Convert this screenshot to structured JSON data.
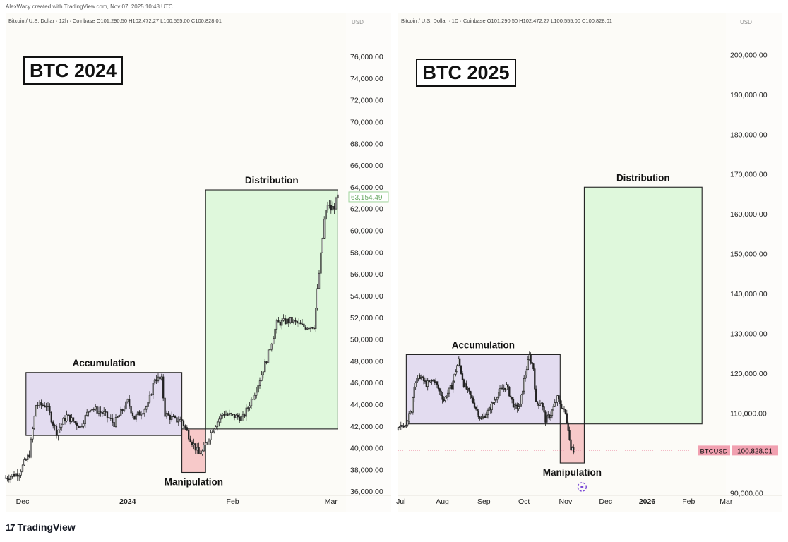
{
  "credit": "AlexWacy created with TradingView.com, Nov 07, 2025 10:48 UTC",
  "footer_brand": "TradingView",
  "footer_logo": "17",
  "colors": {
    "accumulation": "#e3dcf0",
    "manipulation": "#f7c9c9",
    "distribution": "#dff8dc",
    "candle": "#222222",
    "price_label": "#f1a0b0"
  },
  "chart_data": [
    {
      "type": "candlestick",
      "header": "Bitcoin / U.S. Dollar · 12h · Coinbase  O101,290.50  H102,472.27  L100,555.00  C100,828.01",
      "title": "BTC 2024",
      "currency": "USD",
      "y_ticks": [
        76000,
        74000,
        72000,
        70000,
        68000,
        66000,
        64000,
        62000,
        60000,
        58000,
        56000,
        54000,
        52000,
        50000,
        48000,
        46000,
        44000,
        42000,
        40000,
        38000,
        36000
      ],
      "y_tick_labels": [
        "76,000.00",
        "74,000.00",
        "72,000.00",
        "70,000.00",
        "68,000.00",
        "66,000.00",
        "64,000.00",
        "62,000.00",
        "60,000.00",
        "58,000.00",
        "56,000.00",
        "54,000.00",
        "52,000.00",
        "50,000.00",
        "48,000.00",
        "46,000.00",
        "44,000.00",
        "42,000.00",
        "40,000.00",
        "38,000.00",
        "36,000.00"
      ],
      "ylim": [
        35300,
        77500
      ],
      "x_range": [
        "2023-11-26",
        "2024-03-05"
      ],
      "x_ticks": [
        {
          "date": "2023-12-01",
          "label": "Dec"
        },
        {
          "date": "2024-01-01",
          "label": "2024"
        },
        {
          "date": "2024-02-01",
          "label": "Feb"
        },
        {
          "date": "2024-03-01",
          "label": "Mar"
        }
      ],
      "price_label": "63,154.49",
      "price_label_value": 63154.49,
      "zones": [
        {
          "label": "Accumulation",
          "start": "2023-12-02",
          "end": "2024-01-17",
          "low": 41200,
          "high": 47000
        },
        {
          "label": "Manipulation",
          "start": "2024-01-17",
          "end": "2024-01-24",
          "low": 37800,
          "high": 41800
        },
        {
          "label": "Distribution",
          "start": "2024-01-24",
          "end": "2024-03-03",
          "low": 41800,
          "high": 63800
        }
      ],
      "price_path": [
        {
          "date": "2023-11-26",
          "close": 37300
        },
        {
          "date": "2023-11-30",
          "close": 37800
        },
        {
          "date": "2023-12-03",
          "close": 39500
        },
        {
          "date": "2023-12-05",
          "close": 44000
        },
        {
          "date": "2023-12-08",
          "close": 44000
        },
        {
          "date": "2023-12-11",
          "close": 41500
        },
        {
          "date": "2023-12-14",
          "close": 43000
        },
        {
          "date": "2023-12-18",
          "close": 42000
        },
        {
          "date": "2023-12-21",
          "close": 43800
        },
        {
          "date": "2023-12-25",
          "close": 43200
        },
        {
          "date": "2023-12-28",
          "close": 42300
        },
        {
          "date": "2024-01-01",
          "close": 44300
        },
        {
          "date": "2024-01-03",
          "close": 42800
        },
        {
          "date": "2024-01-07",
          "close": 44000
        },
        {
          "date": "2024-01-09",
          "close": 46500
        },
        {
          "date": "2024-01-11",
          "close": 46300
        },
        {
          "date": "2024-01-12",
          "close": 43200
        },
        {
          "date": "2024-01-15",
          "close": 42600
        },
        {
          "date": "2024-01-17",
          "close": 42600
        },
        {
          "date": "2024-01-19",
          "close": 41200
        },
        {
          "date": "2024-01-22",
          "close": 39500
        },
        {
          "date": "2024-01-23",
          "close": 39700
        },
        {
          "date": "2024-01-26",
          "close": 41800
        },
        {
          "date": "2024-01-29",
          "close": 43200
        },
        {
          "date": "2024-02-01",
          "close": 43000
        },
        {
          "date": "2024-02-04",
          "close": 42800
        },
        {
          "date": "2024-02-08",
          "close": 45500
        },
        {
          "date": "2024-02-11",
          "close": 48200
        },
        {
          "date": "2024-02-14",
          "close": 51500
        },
        {
          "date": "2024-02-18",
          "close": 51800
        },
        {
          "date": "2024-02-22",
          "close": 51200
        },
        {
          "date": "2024-02-25",
          "close": 51300
        },
        {
          "date": "2024-02-26",
          "close": 54500
        },
        {
          "date": "2024-02-28",
          "close": 61000
        },
        {
          "date": "2024-02-29",
          "close": 62500
        },
        {
          "date": "2024-03-01",
          "close": 62000
        },
        {
          "date": "2024-03-02",
          "close": 62300
        },
        {
          "date": "2024-03-03",
          "close": 63150
        }
      ]
    },
    {
      "type": "candlestick",
      "header": "Bitcoin / U.S. Dollar · 1D · Coinbase  O101,290.50  H102,472.27  L100,555.00  C100,828.01",
      "title": "BTC 2025",
      "currency": "USD",
      "y_ticks": [
        200000,
        190000,
        180000,
        170000,
        160000,
        150000,
        140000,
        130000,
        120000,
        110000,
        90000
      ],
      "y_tick_labels": [
        "200,000.00",
        "190,000.00",
        "180,000.00",
        "170,000.00",
        "160,000.00",
        "150,000.00",
        "140,000.00",
        "130,000.00",
        "120,000.00",
        "110,000.00",
        "90,000.00"
      ],
      "ylim": [
        88500,
        203600
      ],
      "x_range": [
        "2025-06-29",
        "2026-03-04"
      ],
      "x_ticks": [
        {
          "date": "2025-07-01",
          "label": "Jul"
        },
        {
          "date": "2025-08-01",
          "label": "Aug"
        },
        {
          "date": "2025-09-01",
          "label": "Sep"
        },
        {
          "date": "2025-10-01",
          "label": "Oct"
        },
        {
          "date": "2025-11-01",
          "label": "Nov"
        },
        {
          "date": "2025-12-01",
          "label": "Dec"
        },
        {
          "date": "2026-01-01",
          "label": "2026"
        },
        {
          "date": "2026-02-01",
          "label": "Feb"
        },
        {
          "date": "2026-03-01",
          "label": "Mar"
        }
      ],
      "price_tag": {
        "symbol": "BTCUSD",
        "value": "100,828.01"
      },
      "last_price": 100828.01,
      "zones": [
        {
          "label": "Accumulation",
          "start": "2025-07-05",
          "end": "2025-10-28",
          "low": 107500,
          "high": 124900
        },
        {
          "label": "Manipulation",
          "start": "2025-10-28",
          "end": "2025-11-15",
          "low": 97700,
          "high": 107500
        },
        {
          "label": "Distribution",
          "start": "2025-11-15",
          "end": "2026-02-11",
          "low": 107500,
          "high": 166900
        }
      ],
      "price_path": [
        {
          "date": "2025-06-29",
          "close": 106000
        },
        {
          "date": "2025-07-05",
          "close": 108000
        },
        {
          "date": "2025-07-09",
          "close": 111000
        },
        {
          "date": "2025-07-11",
          "close": 117500
        },
        {
          "date": "2025-07-15",
          "close": 119500
        },
        {
          "date": "2025-07-20",
          "close": 117500
        },
        {
          "date": "2025-07-26",
          "close": 118500
        },
        {
          "date": "2025-08-02",
          "close": 113500
        },
        {
          "date": "2025-08-08",
          "close": 117000
        },
        {
          "date": "2025-08-13",
          "close": 123500
        },
        {
          "date": "2025-08-17",
          "close": 117500
        },
        {
          "date": "2025-08-22",
          "close": 114500
        },
        {
          "date": "2025-08-30",
          "close": 108500
        },
        {
          "date": "2025-09-05",
          "close": 111000
        },
        {
          "date": "2025-09-12",
          "close": 115500
        },
        {
          "date": "2025-09-18",
          "close": 117000
        },
        {
          "date": "2025-09-24",
          "close": 111500
        },
        {
          "date": "2025-09-28",
          "close": 112000
        },
        {
          "date": "2025-10-01",
          "close": 118500
        },
        {
          "date": "2025-10-05",
          "close": 124500
        },
        {
          "date": "2025-10-08",
          "close": 121500
        },
        {
          "date": "2025-10-10",
          "close": 112500
        },
        {
          "date": "2025-10-14",
          "close": 113000
        },
        {
          "date": "2025-10-17",
          "close": 108500
        },
        {
          "date": "2025-10-21",
          "close": 110000
        },
        {
          "date": "2025-10-26",
          "close": 114000
        },
        {
          "date": "2025-10-29",
          "close": 112000
        },
        {
          "date": "2025-11-01",
          "close": 110000
        },
        {
          "date": "2025-11-03",
          "close": 106500
        },
        {
          "date": "2025-11-04",
          "close": 103500
        },
        {
          "date": "2025-11-05",
          "close": 101500
        },
        {
          "date": "2025-11-06",
          "close": 102000
        },
        {
          "date": "2025-11-07",
          "close": 100828
        }
      ]
    }
  ]
}
